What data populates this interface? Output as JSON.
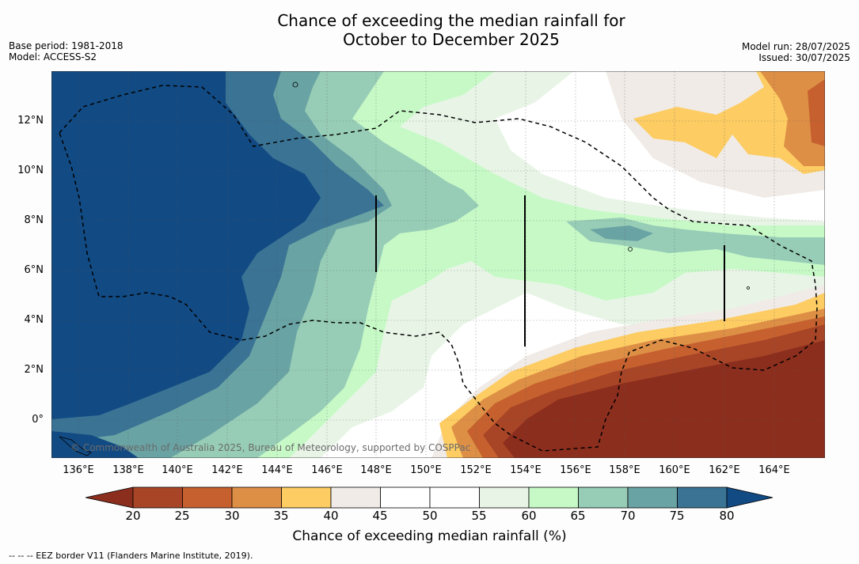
{
  "title": {
    "line1": "Chance of exceeding the median rainfall for",
    "line2": "October to December 2025"
  },
  "meta": {
    "base_period": "Base period: 1981-2018",
    "model": "Model: ACCESS-S2",
    "model_run": "Model run: 28/07/2025",
    "issued": "Issued: 30/07/2025"
  },
  "map": {
    "lat_ticks": [
      "12°N",
      "10°N",
      "8°N",
      "6°N",
      "4°N",
      "2°N",
      "0°"
    ],
    "lon_ticks": [
      "136°E",
      "138°E",
      "140°E",
      "142°E",
      "144°E",
      "146°E",
      "148°E",
      "150°E",
      "152°E",
      "154°E",
      "156°E",
      "158°E",
      "160°E",
      "162°E",
      "164°E"
    ],
    "lat_range": [
      -1.5,
      14
    ],
    "lon_range": [
      134.9,
      166
    ],
    "copyright": "© Commonwealth of Australia 2025, Bureau of Meteorology, supported by COSPPac",
    "eez_border_style": "dashed"
  },
  "colorbar": {
    "labels": [
      "20",
      "25",
      "30",
      "35",
      "40",
      "45",
      "50",
      "55",
      "60",
      "65",
      "70",
      "75",
      "80"
    ],
    "colors": {
      "below_20": "#8c2e1e",
      "20-25": "#a84527",
      "25-30": "#c6612f",
      "30-35": "#de8f46",
      "35-40": "#fdcc63",
      "40-45": "#f0ebe6",
      "45-50": "#ffffff",
      "50-55": "#ffffff",
      "55-60": "#e8f5e6",
      "60-65": "#c7f9c7",
      "65-70": "#97cdb6",
      "70-75": "#6aa3a4",
      "75-80": "#3a7394",
      "above_80": "#124a83"
    },
    "title": "Chance of exceeding median rainfall (%)"
  },
  "footnote": "--  --  -- EEZ border V11 (Flanders Marine Institute, 2019)."
}
